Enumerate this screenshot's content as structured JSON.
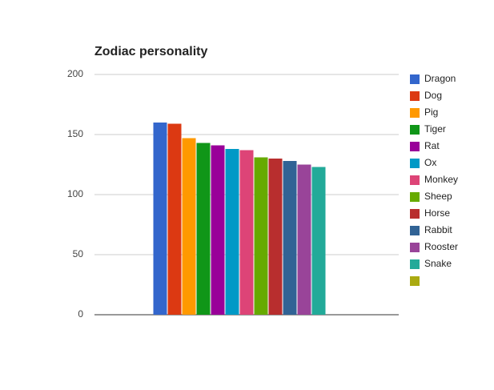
{
  "chart_data": {
    "type": "bar",
    "title": "Zodiac personality",
    "categories": [
      null
    ],
    "series": [
      {
        "name": "Dragon",
        "color": "#3366cc",
        "values": [
          160
        ]
      },
      {
        "name": "Dog",
        "color": "#dc3912",
        "values": [
          159
        ]
      },
      {
        "name": "Pig",
        "color": "#ff9900",
        "values": [
          147
        ]
      },
      {
        "name": "Tiger",
        "color": "#109618",
        "values": [
          143
        ]
      },
      {
        "name": "Rat",
        "color": "#990099",
        "values": [
          141
        ]
      },
      {
        "name": "Ox",
        "color": "#0099c6",
        "values": [
          138
        ]
      },
      {
        "name": "Monkey",
        "color": "#dd4477",
        "values": [
          137
        ]
      },
      {
        "name": "Sheep",
        "color": "#66aa00",
        "values": [
          131
        ]
      },
      {
        "name": "Horse",
        "color": "#b82e2e",
        "values": [
          130
        ]
      },
      {
        "name": "Rabbit",
        "color": "#316395",
        "values": [
          128
        ]
      },
      {
        "name": "Rooster",
        "color": "#994499",
        "values": [
          125
        ]
      },
      {
        "name": "Snake",
        "color": "#22aa99",
        "values": [
          123
        ]
      },
      {
        "name": null,
        "color": "#aaaa11",
        "values": [
          null
        ]
      }
    ],
    "ylim": [
      0,
      200
    ],
    "yticks": [
      0,
      50,
      100,
      150,
      200
    ],
    "grid": true,
    "legend": "right"
  }
}
